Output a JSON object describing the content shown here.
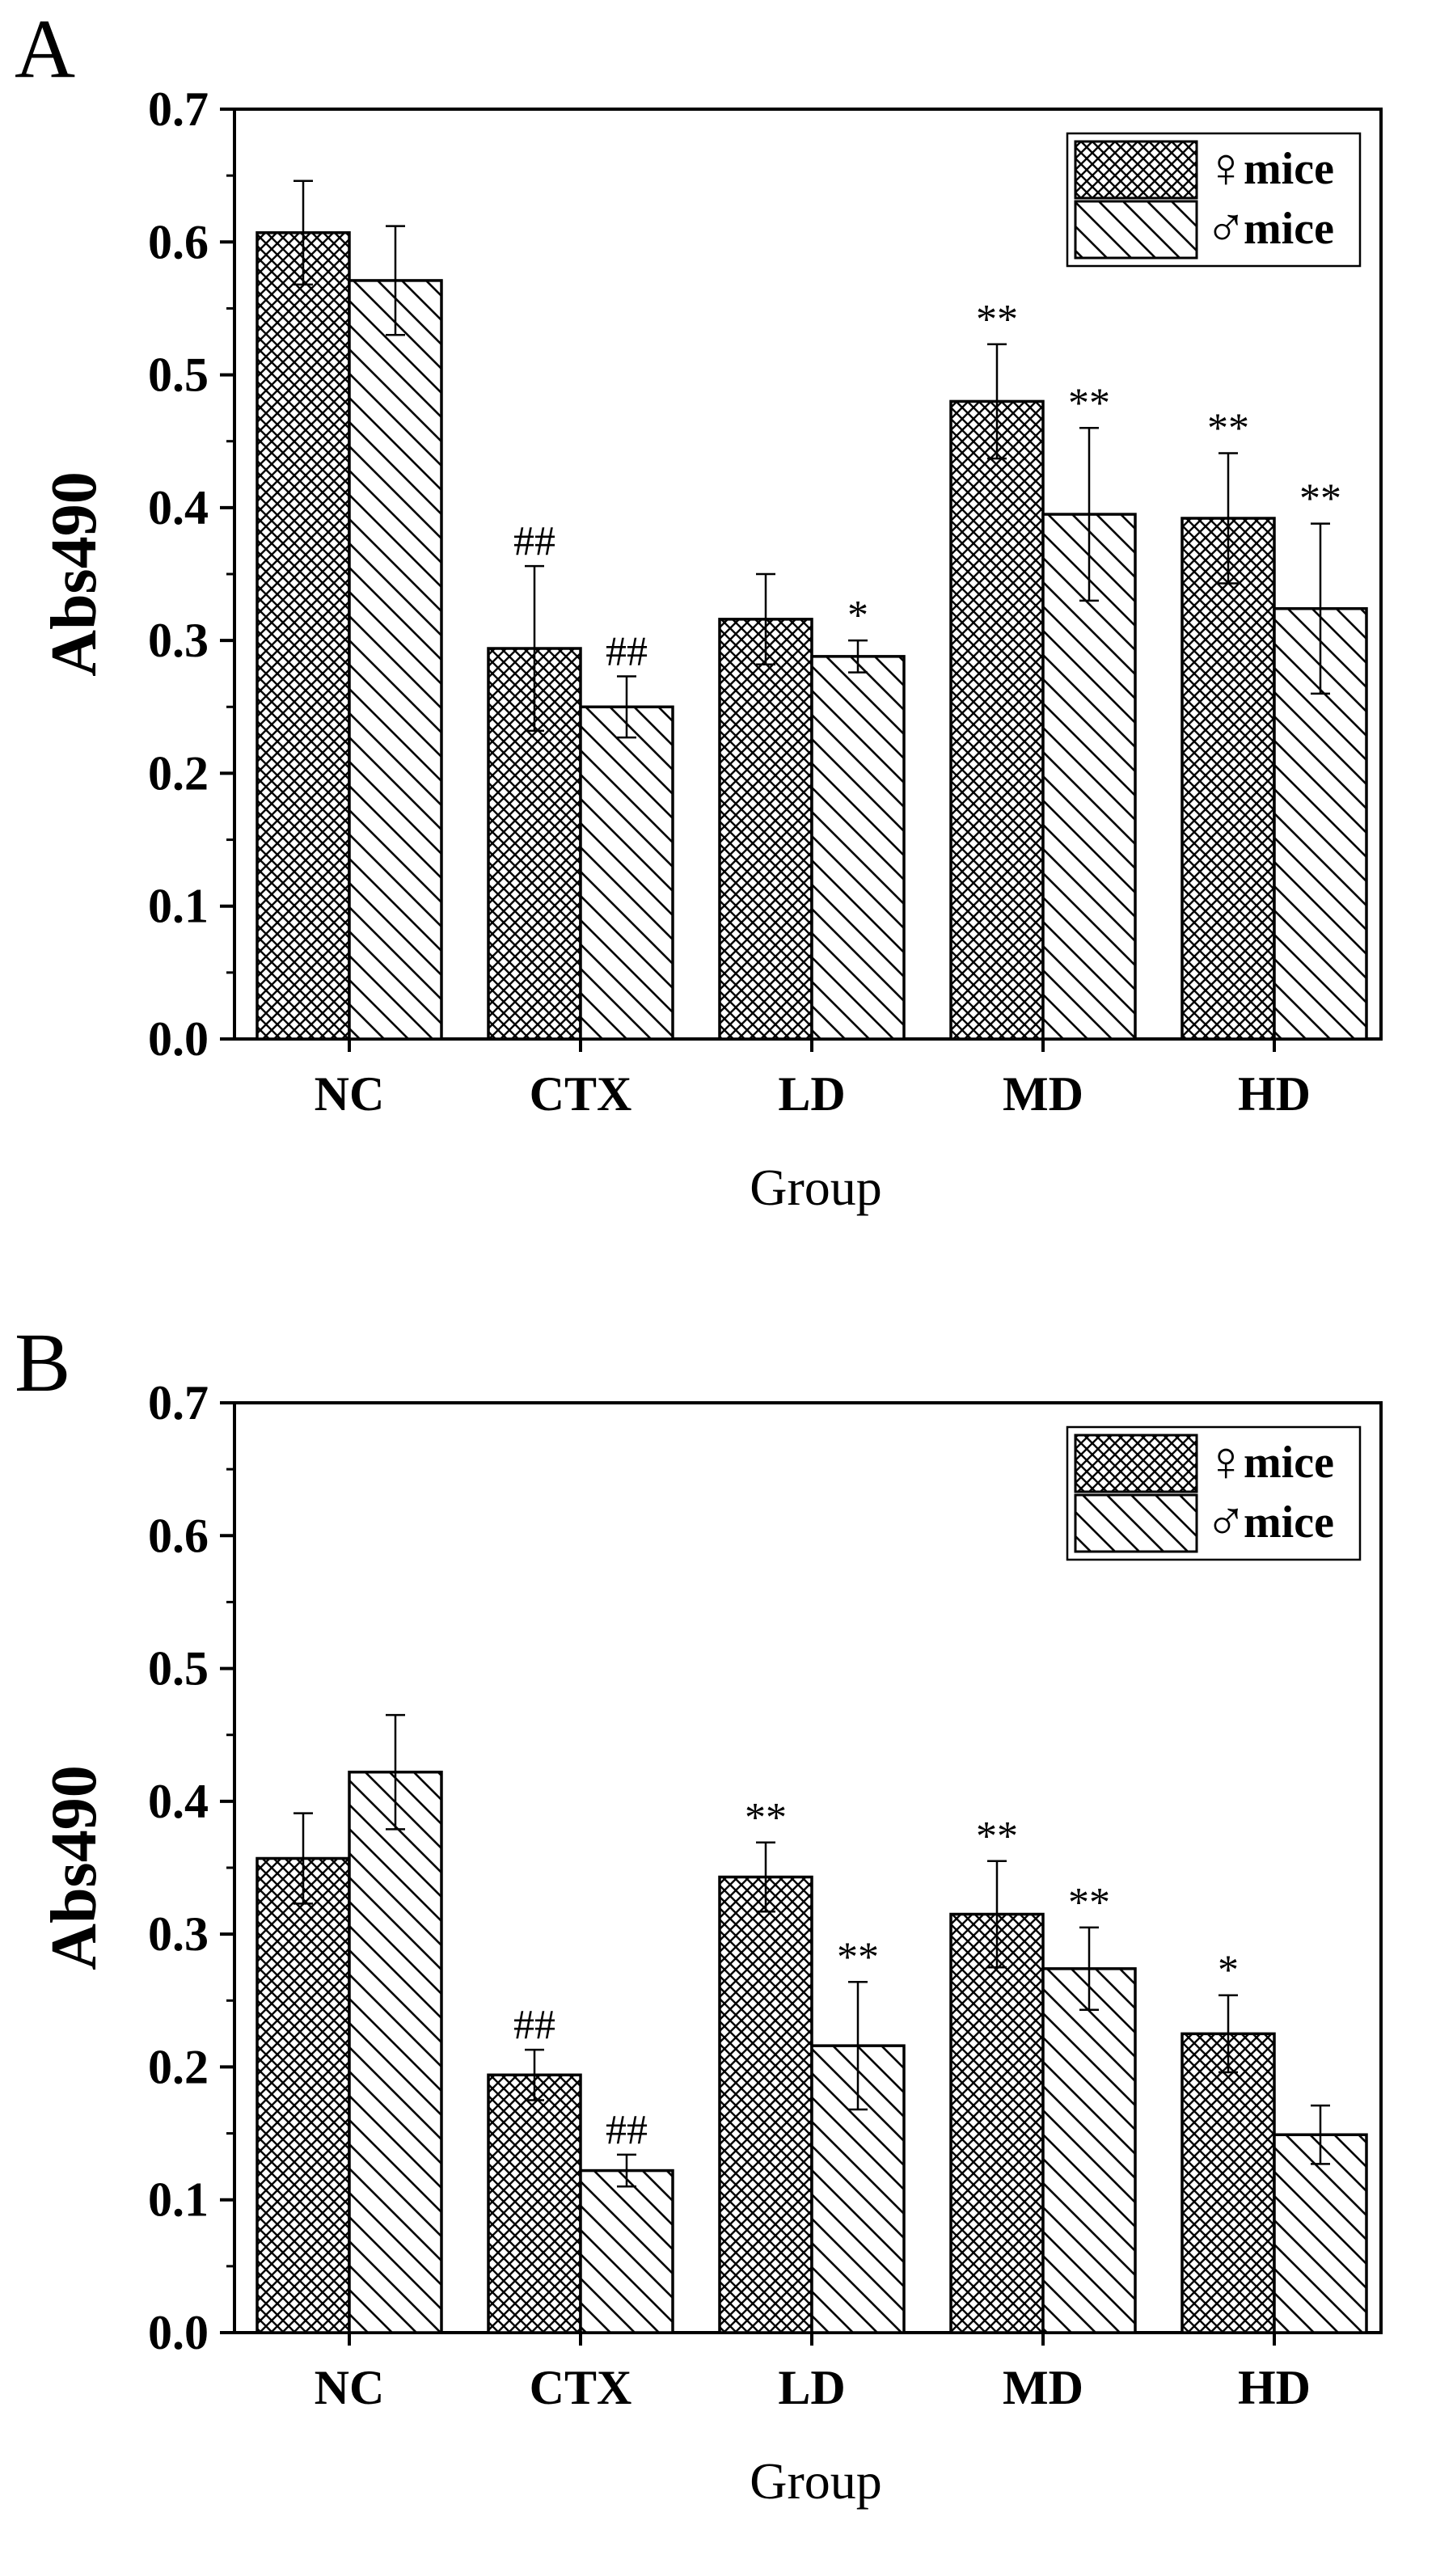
{
  "figure_panels": [
    "A",
    "B"
  ],
  "colors": {
    "ink": "#000000",
    "background": "#ffffff"
  },
  "chart_data": [
    {
      "panel": "A",
      "type": "bar",
      "title": "",
      "xlabel": "Group",
      "ylabel": "Abs490",
      "ylim": [
        0,
        0.7
      ],
      "yticks": [
        "0.0",
        "0.1",
        "0.2",
        "0.3",
        "0.4",
        "0.5",
        "0.6",
        "0.7"
      ],
      "categories": [
        "NC",
        "CTX",
        "LD",
        "MD",
        "HD"
      ],
      "legend_position": "top-right",
      "series": [
        {
          "name": "mice",
          "symbol": "♀",
          "pattern": "crosshatch",
          "values": [
            0.607,
            0.294,
            0.316,
            0.48,
            0.392
          ],
          "errors": [
            0.039,
            0.062,
            0.034,
            0.043,
            0.049
          ],
          "annotations": [
            "",
            "##",
            "",
            "**",
            "**"
          ]
        },
        {
          "name": "mice",
          "symbol": "♂",
          "pattern": "diagonal",
          "values": [
            0.571,
            0.25,
            0.288,
            0.395,
            0.324
          ],
          "errors": [
            0.041,
            0.023,
            0.012,
            0.065,
            0.064
          ],
          "annotations": [
            "",
            "##",
            "*",
            "**",
            "**"
          ]
        }
      ]
    },
    {
      "panel": "B",
      "type": "bar",
      "title": "",
      "xlabel": "Group",
      "ylabel": "Abs490",
      "ylim": [
        0,
        0.7
      ],
      "yticks": [
        "0.0",
        "0.1",
        "0.2",
        "0.3",
        "0.4",
        "0.5",
        "0.6",
        "0.7"
      ],
      "categories": [
        "NC",
        "CTX",
        "LD",
        "MD",
        "HD"
      ],
      "legend_position": "top-right",
      "series": [
        {
          "name": "mice",
          "symbol": "♀",
          "pattern": "crosshatch",
          "values": [
            0.357,
            0.194,
            0.343,
            0.315,
            0.225
          ],
          "errors": [
            0.034,
            0.019,
            0.026,
            0.04,
            0.029
          ],
          "annotations": [
            "",
            "##",
            "**",
            "**",
            "*"
          ]
        },
        {
          "name": "mice",
          "symbol": "♂",
          "pattern": "diagonal",
          "values": [
            0.422,
            0.122,
            0.216,
            0.274,
            0.149
          ],
          "errors": [
            0.043,
            0.012,
            0.048,
            0.031,
            0.022
          ],
          "annotations": [
            "",
            "##",
            "**",
            "**",
            ""
          ]
        }
      ]
    }
  ]
}
